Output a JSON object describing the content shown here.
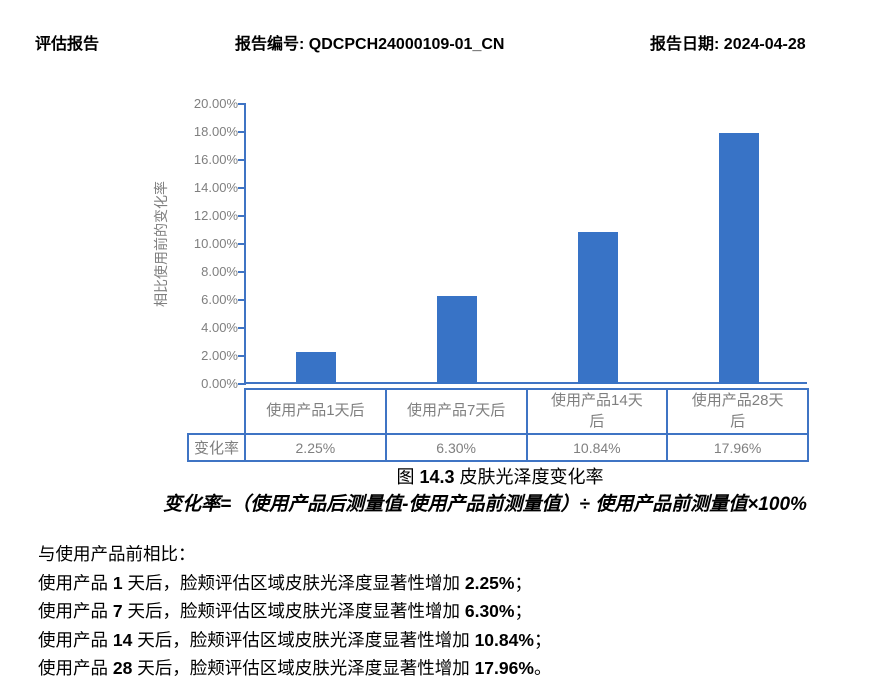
{
  "header": {
    "title": "评估报告",
    "report_no_label": "报告编号:",
    "report_no": "QDCPCH24000109-01_CN",
    "date_label": "报告日期:",
    "date": "2024-04-28"
  },
  "chart_data": {
    "type": "bar",
    "title": "图 14.3 皮肤光泽度变化率",
    "xlabel": "",
    "ylabel": "相比使用前的变化率",
    "ylim": [
      0,
      20
    ],
    "grid": false,
    "legend": "none",
    "yticks": [
      "0.00%",
      "2.00%",
      "4.00%",
      "6.00%",
      "8.00%",
      "10.00%",
      "12.00%",
      "14.00%",
      "16.00%",
      "18.00%",
      "20.00%"
    ],
    "categories": [
      "使用产品1天后",
      "使用产品7天后",
      "使用产品14天\n后",
      "使用产品28天\n后"
    ],
    "values": [
      2.25,
      6.3,
      10.84,
      17.96
    ],
    "data_table": {
      "row_label": "变化率",
      "values": [
        "2.25%",
        "6.30%",
        "10.84%",
        "17.96%"
      ]
    },
    "bar_color": "#3873c6",
    "axis_color": "#3f74c4",
    "tick_label_color": "#7f7f7f"
  },
  "caption": {
    "segments": [
      {
        "t": "图 "
      },
      {
        "t": "14.3",
        "b": true
      },
      {
        "t": " 皮肤光泽度变化率"
      }
    ]
  },
  "formula": {
    "text": "变化率=（使用产品后测量值-使用产品前测量值）÷ 使用产品前测量值×100%"
  },
  "body": {
    "lines": [
      [
        {
          "t": "与使用产品前相比："
        }
      ],
      [
        {
          "t": "使用产品 "
        },
        {
          "t": "1",
          "b": true
        },
        {
          "t": " 天后，脸颊评估区域皮肤光泽度显著性增加 "
        },
        {
          "t": "2.25%",
          "b": true
        },
        {
          "t": "；"
        }
      ],
      [
        {
          "t": "使用产品 "
        },
        {
          "t": "7",
          "b": true
        },
        {
          "t": " 天后，脸颊评估区域皮肤光泽度显著性增加 "
        },
        {
          "t": "6.30%",
          "b": true
        },
        {
          "t": "；"
        }
      ],
      [
        {
          "t": "使用产品 "
        },
        {
          "t": "14",
          "b": true
        },
        {
          "t": " 天后，脸颊评估区域皮肤光泽度显著性增加 "
        },
        {
          "t": "10.84%",
          "b": true
        },
        {
          "t": "；"
        }
      ],
      [
        {
          "t": "使用产品 "
        },
        {
          "t": "28",
          "b": true
        },
        {
          "t": " 天后，脸颊评估区域皮肤光泽度显著性增加 "
        },
        {
          "t": "17.96%",
          "b": true
        },
        {
          "t": "。"
        }
      ]
    ]
  }
}
